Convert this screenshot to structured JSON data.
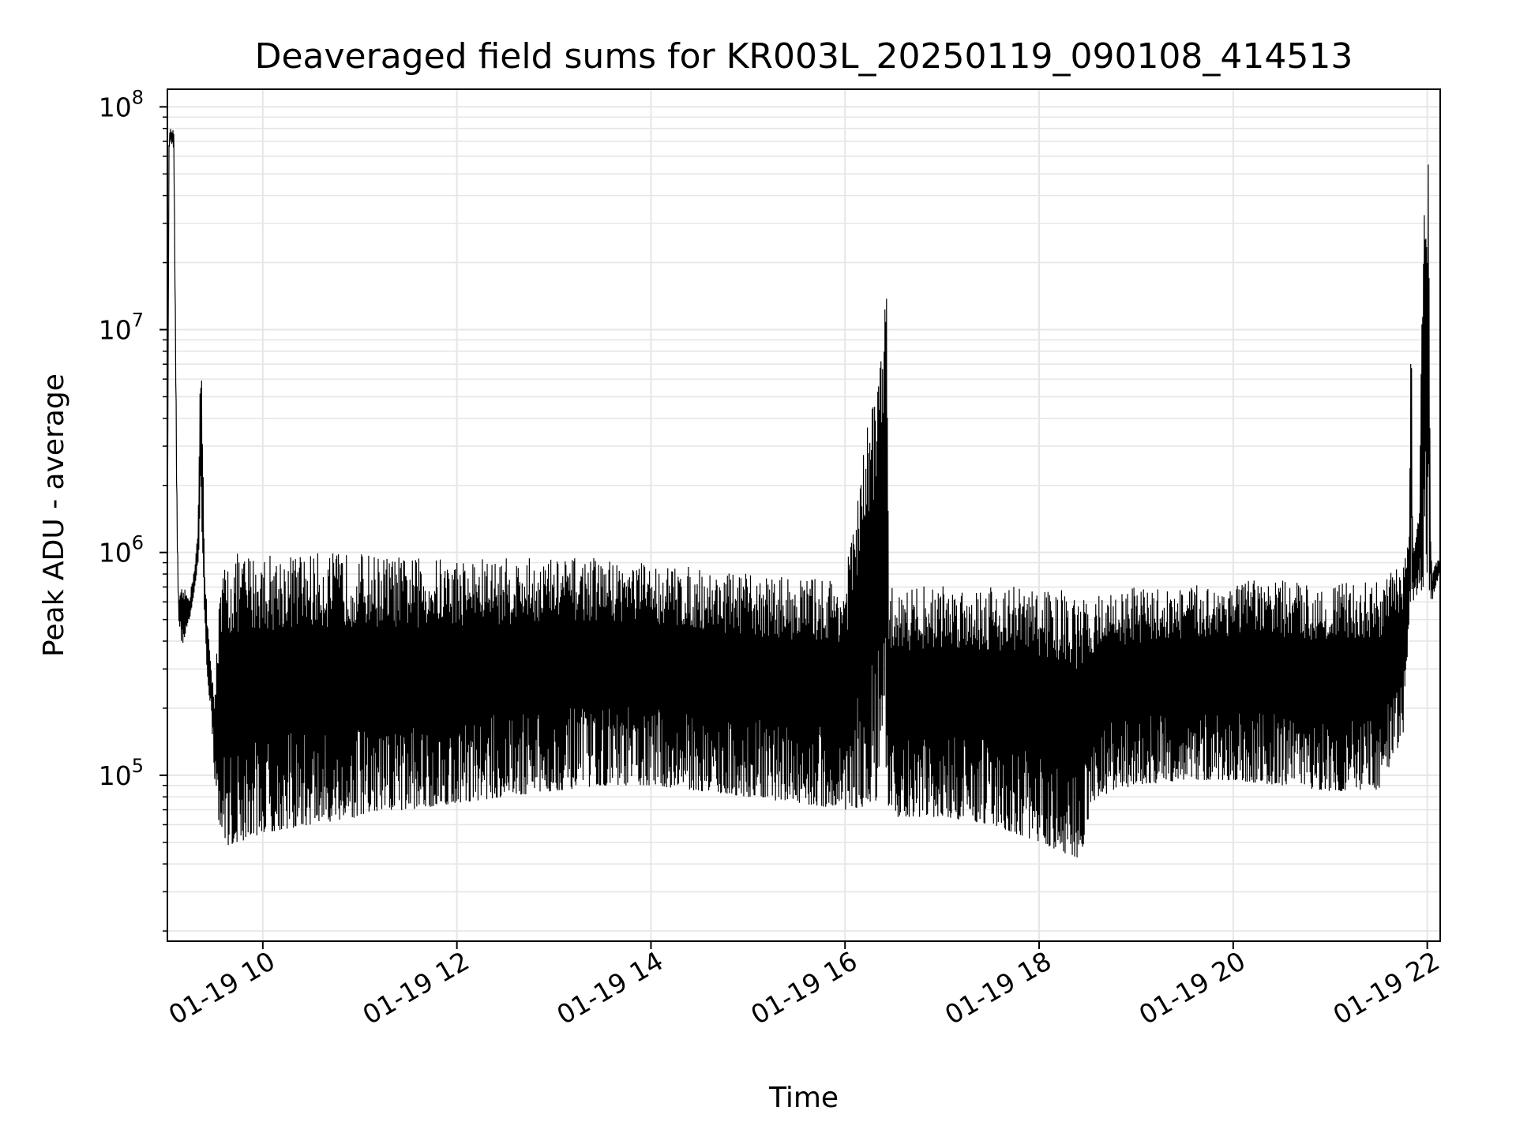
{
  "chart_data": {
    "type": "line",
    "title": "Deaveraged field sums for KR003L_20250119_090108_414513",
    "xlabel": "Time",
    "ylabel": "Peak ADU - average",
    "y_scale": "log",
    "ylim": [
      18000,
      120000000
    ],
    "xlim": [
      "2025-01-19 09:01",
      "2025-01-19 22:08"
    ],
    "x_ticks": [
      {
        "label": "01-19 10",
        "value": "2025-01-19 10:00"
      },
      {
        "label": "01-19 12",
        "value": "2025-01-19 12:00"
      },
      {
        "label": "01-19 14",
        "value": "2025-01-19 14:00"
      },
      {
        "label": "01-19 16",
        "value": "2025-01-19 16:00"
      },
      {
        "label": "01-19 18",
        "value": "2025-01-19 18:00"
      },
      {
        "label": "01-19 20",
        "value": "2025-01-19 20:00"
      },
      {
        "label": "01-19 22",
        "value": "2025-01-19 22:00"
      }
    ],
    "y_ticks": [
      {
        "base": "10",
        "exp": "5",
        "value": 100000
      },
      {
        "base": "10",
        "exp": "6",
        "value": 1000000
      },
      {
        "base": "10",
        "exp": "7",
        "value": 10000000
      },
      {
        "base": "10",
        "exp": "8",
        "value": 100000000
      }
    ],
    "grid": true,
    "line_color": "#000000",
    "grid_color": "#e6e6e6",
    "series": [
      {
        "x": [
          "2025-01-19 09:01",
          "2025-01-19 09:02",
          "2025-01-19 09:03",
          "2025-01-19 09:05",
          "2025-01-19 09:07",
          "2025-01-19 09:08",
          "2025-01-19 09:10",
          "2025-01-19 09:15",
          "2025-01-19 09:18",
          "2025-01-19 09:20",
          "2025-01-19 09:21",
          "2025-01-19 09:22",
          "2025-01-19 09:24",
          "2025-01-19 09:26",
          "2025-01-19 09:28",
          "2025-01-19 09:30",
          "2025-01-19 09:33",
          "2025-01-19 09:36",
          "2025-01-19 09:40",
          "2025-01-19 09:45",
          "2025-01-19 10:00",
          "2025-01-19 10:30",
          "2025-01-19 11:00",
          "2025-01-19 11:30",
          "2025-01-19 12:00",
          "2025-01-19 12:30",
          "2025-01-19 13:00",
          "2025-01-19 13:30",
          "2025-01-19 14:00",
          "2025-01-19 14:30",
          "2025-01-19 15:00",
          "2025-01-19 15:30",
          "2025-01-19 16:00",
          "2025-01-19 16:26",
          "2025-01-19 16:27",
          "2025-01-19 16:28",
          "2025-01-19 17:00",
          "2025-01-19 17:30",
          "2025-01-19 18:00",
          "2025-01-19 18:15",
          "2025-01-19 18:25",
          "2025-01-19 18:35",
          "2025-01-19 19:00",
          "2025-01-19 19:30",
          "2025-01-19 20:00",
          "2025-01-19 20:30",
          "2025-01-19 21:00",
          "2025-01-19 21:30",
          "2025-01-19 21:45",
          "2025-01-19 21:49",
          "2025-01-19 21:50",
          "2025-01-19 21:51",
          "2025-01-19 21:55",
          "2025-01-19 21:58",
          "2025-01-19 21:59",
          "2025-01-19 22:01",
          "2025-01-19 22:02",
          "2025-01-19 22:03",
          "2025-01-19 22:05",
          "2025-01-19 22:08"
        ],
        "upper": [
          1200000,
          75000000,
          80000000,
          78000000,
          1500000,
          600000,
          700000,
          650000,
          900000,
          1300000,
          5000000,
          8000000,
          900000,
          500000,
          300000,
          250000,
          600000,
          900000,
          950000,
          1000000,
          1000000,
          1000000,
          1000000,
          950000,
          950000,
          950000,
          950000,
          950000,
          900000,
          850000,
          800000,
          780000,
          770000,
          15000000,
          750000,
          700000,
          720000,
          730000,
          700000,
          680000,
          600000,
          650000,
          700000,
          700000,
          750000,
          750000,
          720000,
          750000,
          900000,
          1200000,
          17000000,
          1100000,
          1500000,
          65000000,
          70000000,
          60000000,
          1500000,
          800000,
          900000,
          950000
        ],
        "lower": [
          1000000,
          65000000,
          70000000,
          65000000,
          1000000,
          500000,
          380000,
          500000,
          700000,
          900000,
          1200000,
          1500000,
          500000,
          250000,
          200000,
          100000,
          60000,
          50000,
          48000,
          50000,
          55000,
          60000,
          65000,
          70000,
          75000,
          80000,
          85000,
          90000,
          90000,
          85000,
          80000,
          75000,
          70000,
          75000,
          70000,
          65000,
          65000,
          60000,
          50000,
          45000,
          42000,
          80000,
          90000,
          95000,
          95000,
          90000,
          85000,
          85000,
          150000,
          500000,
          600000,
          600000,
          650000,
          700000,
          900000,
          700000,
          600000,
          600000,
          700000,
          800000
        ]
      }
    ]
  }
}
